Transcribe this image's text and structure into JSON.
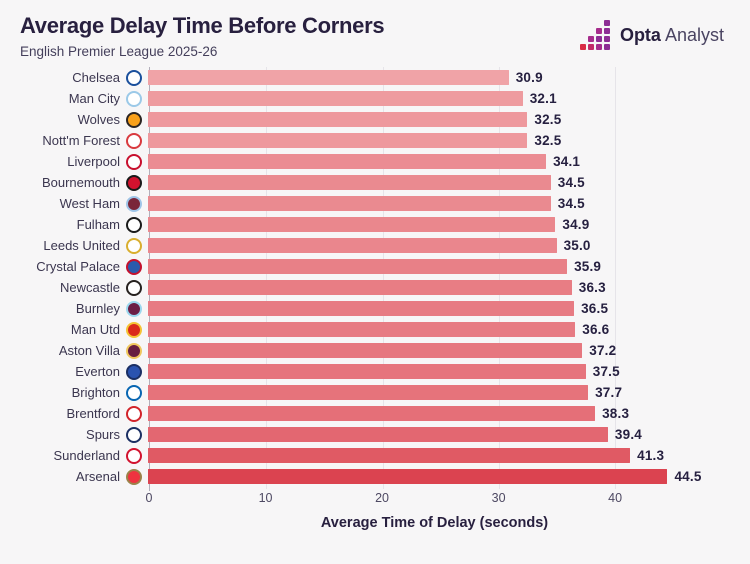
{
  "logo": {
    "opta": "Opta",
    "analyst": "Analyst",
    "icon_colors": [
      "#d92b45",
      "#c22a68",
      "#a62c8c",
      "#8d2d94"
    ],
    "icon_column_heights": [
      1,
      2,
      3,
      4
    ]
  },
  "chart_data": {
    "type": "bar",
    "orientation": "horizontal",
    "title": "Average Delay Time Before Corners",
    "subtitle": "English Premier League 2025-26",
    "xlabel": "Average Time of Delay (seconds)",
    "xlim": [
      0,
      49
    ],
    "xticks": [
      0,
      10,
      20,
      30,
      40
    ],
    "grid": "vertical-light",
    "bar_color_min": "#f0a3a7",
    "bar_color_max": "#db4350",
    "background": "#f7f6f7",
    "teams": [
      {
        "name": "Chelsea",
        "value": 30.9,
        "label": "30.9",
        "crest_fill": "#ffffff",
        "crest_ring": "#1a4f9c"
      },
      {
        "name": "Man City",
        "value": 32.1,
        "label": "32.1",
        "crest_fill": "#ffffff",
        "crest_ring": "#9bc9e8"
      },
      {
        "name": "Wolves",
        "value": 32.5,
        "label": "32.5",
        "crest_fill": "#f9a11b",
        "crest_ring": "#2b2523"
      },
      {
        "name": "Nott'm Forest",
        "value": 32.5,
        "label": "32.5",
        "crest_fill": "#ffffff",
        "crest_ring": "#d93a3f"
      },
      {
        "name": "Liverpool",
        "value": 34.1,
        "label": "34.1",
        "crest_fill": "#ffffff",
        "crest_ring": "#c8102e"
      },
      {
        "name": "Bournemouth",
        "value": 34.5,
        "label": "34.5",
        "crest_fill": "#d2122e",
        "crest_ring": "#1a1a1a"
      },
      {
        "name": "West Ham",
        "value": 34.5,
        "label": "34.5",
        "crest_fill": "#7a263a",
        "crest_ring": "#9fc5e8"
      },
      {
        "name": "Fulham",
        "value": 34.9,
        "label": "34.9",
        "crest_fill": "#ffffff",
        "crest_ring": "#1a1a1a"
      },
      {
        "name": "Leeds United",
        "value": 35.0,
        "label": "35.0",
        "crest_fill": "#ffffff",
        "crest_ring": "#d9ae2e"
      },
      {
        "name": "Crystal Palace",
        "value": 35.9,
        "label": "35.9",
        "crest_fill": "#2b5bad",
        "crest_ring": "#c4122e"
      },
      {
        "name": "Newcastle",
        "value": 36.3,
        "label": "36.3",
        "crest_fill": "#ffffff",
        "crest_ring": "#26211f"
      },
      {
        "name": "Burnley",
        "value": 36.5,
        "label": "36.5",
        "crest_fill": "#6c1d45",
        "crest_ring": "#9bd7ee"
      },
      {
        "name": "Man Utd",
        "value": 36.6,
        "label": "36.6",
        "crest_fill": "#da291c",
        "crest_ring": "#f5c335"
      },
      {
        "name": "Aston Villa",
        "value": 37.2,
        "label": "37.2",
        "crest_fill": "#671e40",
        "crest_ring": "#f0c75e"
      },
      {
        "name": "Everton",
        "value": 37.5,
        "label": "37.5",
        "crest_fill": "#2a53b0",
        "crest_ring": "#1b2f63"
      },
      {
        "name": "Brighton",
        "value": 37.7,
        "label": "37.7",
        "crest_fill": "#ffffff",
        "crest_ring": "#0866b2"
      },
      {
        "name": "Brentford",
        "value": 38.3,
        "label": "38.3",
        "crest_fill": "#ffffff",
        "crest_ring": "#d2232a"
      },
      {
        "name": "Spurs",
        "value": 39.4,
        "label": "39.4",
        "crest_fill": "#ffffff",
        "crest_ring": "#1b2f63"
      },
      {
        "name": "Sunderland",
        "value": 41.3,
        "label": "41.3",
        "crest_fill": "#ffffff",
        "crest_ring": "#d2122e"
      },
      {
        "name": "Arsenal",
        "value": 44.5,
        "label": "44.5",
        "crest_fill": "#ef3340",
        "crest_ring": "#9c824a"
      }
    ]
  }
}
